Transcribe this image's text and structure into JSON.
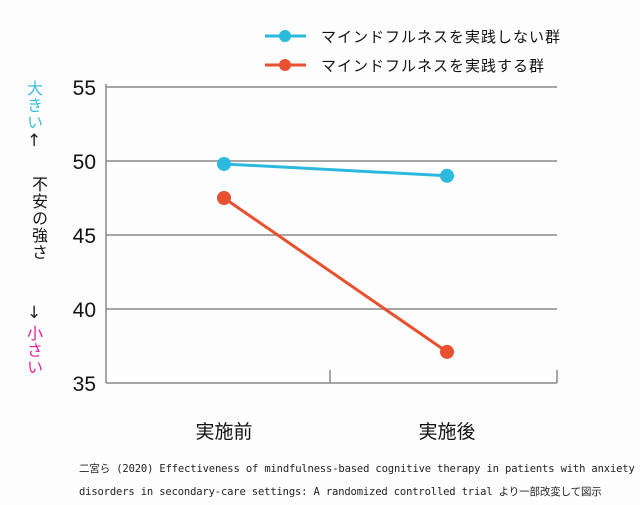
{
  "chart_data": {
    "type": "line",
    "title": "",
    "xlabel": "",
    "ylabel": "不安の強さ",
    "categories": [
      "実施前",
      "実施後"
    ],
    "ylim": [
      35,
      55
    ],
    "yticks": [
      35,
      40,
      45,
      50,
      55
    ],
    "grid": true,
    "legend_position": "top-right",
    "series": [
      {
        "name": "マインドフルネスを実践しない群",
        "color": "#2bb9de",
        "values": [
          49.8,
          49.0
        ]
      },
      {
        "name": "マインドフルネスを実践する群",
        "color": "#e8512f",
        "values": [
          47.5,
          37.1
        ]
      }
    ]
  },
  "yaxis_annotation": {
    "high_label": "大きい",
    "high_color": "#3bbde0",
    "up_arrow": "↑",
    "middle_label": "不安の強さ",
    "down_arrow": "↓",
    "low_label": "小さい",
    "low_color": "#e0209a"
  },
  "caption": {
    "line1": "二宮ら (2020) Effectiveness of mindfulness-based cognitive therapy in patients with anxiety",
    "line2": "disorders in secondary-care settings: A randomized controlled trial より一部改変して図示"
  }
}
